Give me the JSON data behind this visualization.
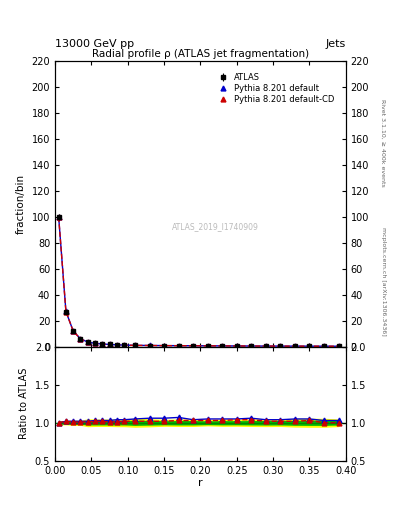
{
  "title": "Radial profile ρ (ATLAS jet fragmentation)",
  "top_left_label": "13000 GeV pp",
  "top_right_label": "Jets",
  "right_label_top": "Rivet 3.1.10, ≥ 400k events",
  "right_label_bottom": "mcplots.cern.ch [arXiv:1306.3436]",
  "watermark": "ATLAS_2019_I1740909",
  "ylabel_main": "fraction/bin",
  "ylabel_ratio": "Ratio to ATLAS",
  "xlabel": "r",
  "xlim": [
    0,
    0.4
  ],
  "ylim_main": [
    0,
    220
  ],
  "ylim_ratio": [
    0.5,
    2.0
  ],
  "yticks_main": [
    0,
    20,
    40,
    60,
    80,
    100,
    120,
    140,
    160,
    180,
    200,
    220
  ],
  "yticks_ratio": [
    0.5,
    1.0,
    1.5,
    2.0
  ],
  "x_data": [
    0.005,
    0.015,
    0.025,
    0.035,
    0.045,
    0.055,
    0.065,
    0.075,
    0.085,
    0.095,
    0.11,
    0.13,
    0.15,
    0.17,
    0.19,
    0.21,
    0.23,
    0.25,
    0.27,
    0.29,
    0.31,
    0.33,
    0.35,
    0.37,
    0.39
  ],
  "atlas_y": [
    100,
    27,
    12,
    6,
    3.5,
    2.5,
    2.0,
    1.7,
    1.4,
    1.2,
    1.0,
    0.9,
    0.8,
    0.75,
    0.7,
    0.65,
    0.6,
    0.55,
    0.5,
    0.48,
    0.45,
    0.42,
    0.4,
    0.38,
    0.35
  ],
  "atlas_yerr": [
    2,
    0.5,
    0.3,
    0.2,
    0.15,
    0.1,
    0.08,
    0.07,
    0.06,
    0.05,
    0.04,
    0.04,
    0.03,
    0.03,
    0.03,
    0.02,
    0.02,
    0.02,
    0.02,
    0.02,
    0.02,
    0.02,
    0.02,
    0.02,
    0.02
  ],
  "pythia_default_y": [
    100,
    27.2,
    12.1,
    6.1,
    3.6,
    2.6,
    2.1,
    1.75,
    1.45,
    1.25,
    1.05,
    0.95,
    0.85,
    0.8,
    0.73,
    0.68,
    0.63,
    0.58,
    0.53,
    0.5,
    0.47,
    0.44,
    0.42,
    0.39,
    0.36
  ],
  "pythia_cd_y": [
    100,
    27.1,
    12.05,
    6.05,
    3.55,
    2.55,
    2.05,
    1.72,
    1.42,
    1.22,
    1.02,
    0.92,
    0.82,
    0.77,
    0.72,
    0.67,
    0.62,
    0.57,
    0.52,
    0.49,
    0.46,
    0.43,
    0.41,
    0.38,
    0.355
  ],
  "ratio_pythia_default": [
    1.0,
    1.02,
    1.02,
    1.02,
    1.02,
    1.03,
    1.03,
    1.03,
    1.04,
    1.04,
    1.05,
    1.06,
    1.06,
    1.07,
    1.04,
    1.05,
    1.05,
    1.05,
    1.06,
    1.04,
    1.04,
    1.05,
    1.05,
    1.03,
    1.03
  ],
  "ratio_pythia_cd": [
    1.0,
    1.02,
    1.01,
    1.01,
    1.01,
    1.02,
    1.02,
    1.01,
    1.01,
    1.02,
    1.02,
    1.02,
    1.02,
    1.03,
    1.03,
    1.03,
    1.03,
    1.04,
    1.04,
    1.02,
    1.02,
    1.02,
    1.03,
    1.0,
    1.0
  ],
  "ratio_band_err_inner": [
    0.01,
    0.009,
    0.012,
    0.012,
    0.02,
    0.02,
    0.02,
    0.02,
    0.02,
    0.02,
    0.025,
    0.022,
    0.018,
    0.02,
    0.02,
    0.016,
    0.019,
    0.018,
    0.02,
    0.021,
    0.02,
    0.024,
    0.025,
    0.025,
    0.021
  ],
  "ratio_band_err_outer": [
    0.02,
    0.018,
    0.025,
    0.025,
    0.043,
    0.04,
    0.04,
    0.04,
    0.043,
    0.043,
    0.05,
    0.045,
    0.037,
    0.04,
    0.04,
    0.032,
    0.038,
    0.037,
    0.04,
    0.042,
    0.04,
    0.048,
    0.05,
    0.05,
    0.042
  ],
  "color_atlas": "#000000",
  "color_pythia_default": "#0000cc",
  "color_pythia_cd": "#cc0000",
  "color_band_yellow": "#ffff00",
  "color_band_green": "#00bb00",
  "color_ref_line": "#008800",
  "bg_color": "#ffffff",
  "legend_entries": [
    "ATLAS",
    "Pythia 8.201 default",
    "Pythia 8.201 default-CD"
  ]
}
